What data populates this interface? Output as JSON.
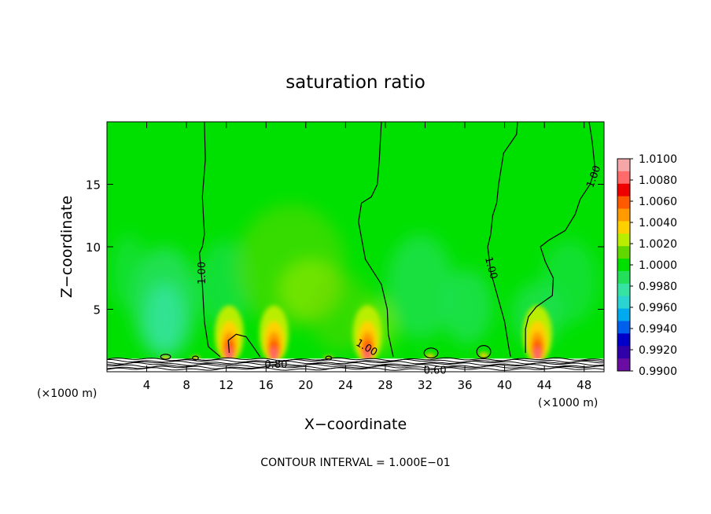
{
  "chart_data": {
    "type": "heatmap",
    "title": "saturation ratio",
    "xlabel": "X−coordinate",
    "ylabel": "Z−coordinate",
    "x_unit_left": "(×1000 m)",
    "x_unit_right": "(×1000 m)",
    "footer": "CONTOUR INTERVAL = 1.000E−01",
    "xlim": [
      0,
      50
    ],
    "ylim": [
      0,
      20
    ],
    "x_ticks": [
      4,
      8,
      12,
      16,
      20,
      24,
      28,
      32,
      36,
      40,
      44,
      48
    ],
    "y_ticks": [
      5,
      10,
      15
    ],
    "colorbar": {
      "levels": [
        "1.0100",
        "1.0080",
        "1.0060",
        "1.0040",
        "1.0020",
        "1.0000",
        "0.9980",
        "0.9960",
        "0.9940",
        "0.9920",
        "0.9900"
      ],
      "colors": [
        "#f5a7a8",
        "#ff6a6a",
        "#ee0000",
        "#ff5a00",
        "#ff9a00",
        "#ffd000",
        "#b9ee00",
        "#60d800",
        "#00e000",
        "#22e05a",
        "#37e3a3",
        "#2ad4d0",
        "#00aaee",
        "#0060ee",
        "#0000c8",
        "#3000a8",
        "#6a0ca2"
      ]
    },
    "contours": [
      {
        "label": "1.00",
        "points": [
          [
            9.8,
            20
          ],
          [
            9.9,
            17
          ],
          [
            9.6,
            14
          ],
          [
            9.8,
            11
          ],
          [
            9.6,
            10
          ],
          [
            9.3,
            9.5
          ],
          [
            9.6,
            7
          ],
          [
            9.8,
            4
          ],
          [
            10.2,
            2
          ],
          [
            11.4,
            1.2
          ]
        ]
      },
      {
        "label": "1.00",
        "points": [
          [
            27.6,
            20
          ],
          [
            27.4,
            17
          ],
          [
            27.2,
            15
          ],
          [
            26.6,
            14
          ],
          [
            25.6,
            13.5
          ],
          [
            25.3,
            12
          ],
          [
            26,
            9
          ],
          [
            27.6,
            7
          ],
          [
            28.2,
            5
          ],
          [
            28.3,
            3
          ],
          [
            28.8,
            1.2
          ]
        ]
      },
      {
        "label": "1.00",
        "points": [
          [
            41.3,
            20
          ],
          [
            41.2,
            19
          ],
          [
            40.6,
            18.3
          ],
          [
            39.9,
            17.5
          ],
          [
            39.4,
            15
          ],
          [
            39.2,
            13.5
          ],
          [
            38.8,
            12.5
          ],
          [
            38.6,
            11
          ],
          [
            38.3,
            10
          ],
          [
            38.6,
            8
          ],
          [
            39.3,
            6
          ],
          [
            40,
            4
          ],
          [
            40.4,
            2
          ],
          [
            40.6,
            1.2
          ]
        ]
      },
      {
        "label": "1.00",
        "points": [
          [
            48.5,
            20
          ],
          [
            48.8,
            18.5
          ],
          [
            49.1,
            16.2
          ],
          [
            48.6,
            15
          ],
          [
            47.6,
            13.8
          ],
          [
            47.1,
            12.6
          ],
          [
            46.1,
            11.3
          ],
          [
            44.4,
            10.5
          ],
          [
            43.6,
            10
          ],
          [
            44.1,
            8.8
          ],
          [
            44.9,
            7.5
          ],
          [
            44.8,
            6.1
          ],
          [
            43.2,
            5.2
          ],
          [
            42.4,
            4.4
          ],
          [
            42.1,
            3.4
          ],
          [
            42.1,
            1.5
          ]
        ]
      },
      {
        "label": "1.00",
        "points": [
          [
            12.3,
            1.5
          ],
          [
            12.2,
            2.5
          ],
          [
            13,
            3
          ],
          [
            14,
            2.8
          ],
          [
            14.8,
            1.9
          ],
          [
            15.4,
            1.2
          ]
        ]
      }
    ],
    "low_labels": [
      "0.80",
      "0.60"
    ]
  }
}
